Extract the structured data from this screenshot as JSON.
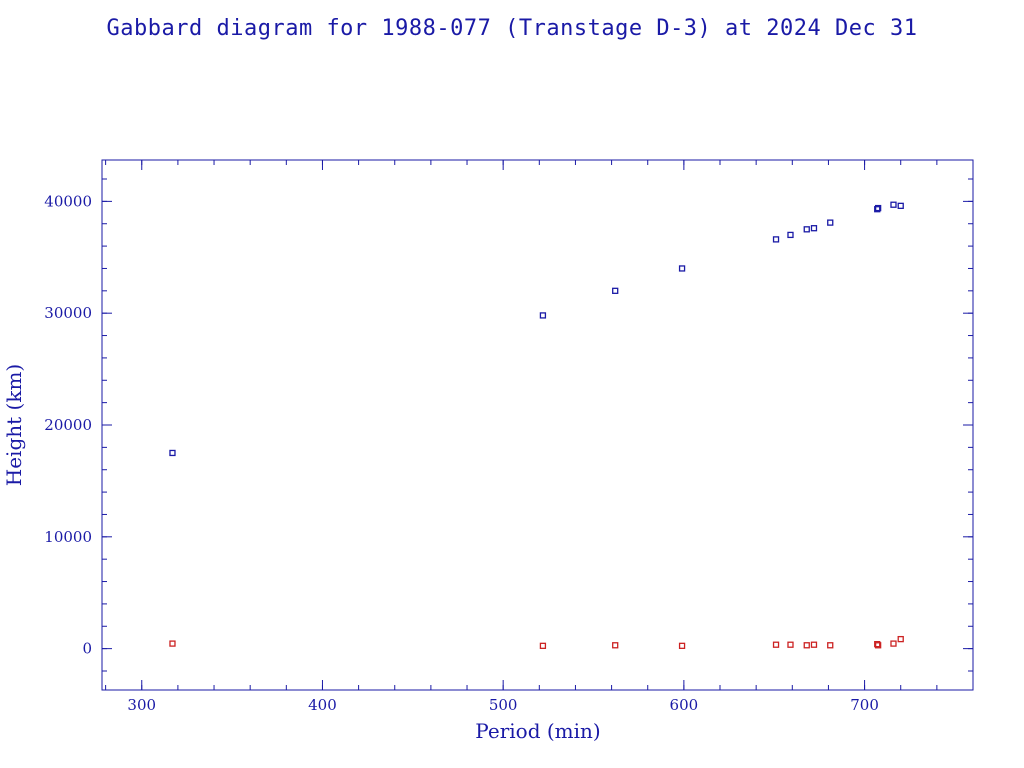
{
  "title": "Gabbard diagram for 1988-077 (Transtage D-3) at 2024 Dec 31",
  "colors": {
    "frame": "#1a1aa6",
    "apogee": "#1a1aa6",
    "perigee": "#cc2222",
    "background": "#ffffff"
  },
  "chart_data": {
    "type": "scatter",
    "title": "Gabbard diagram for 1988-077 (Transtage D-3) at 2024 Dec 31",
    "xlabel": "Period (min)",
    "ylabel": "Height (km)",
    "xlim": [
      278,
      760
    ],
    "ylim": [
      -3700,
      43700
    ],
    "xticks": [
      300,
      400,
      500,
      600,
      700
    ],
    "yticks": [
      0,
      10000,
      20000,
      30000,
      40000
    ],
    "x_minor_step": 20,
    "y_minor_step": 2000,
    "grid": false,
    "series": [
      {
        "color": "#1a1aa6",
        "marker": "square",
        "points": [
          [
            317,
            17500
          ],
          [
            522,
            29800
          ],
          [
            562,
            32000
          ],
          [
            599,
            34000
          ],
          [
            651,
            36600
          ],
          [
            659,
            37000
          ],
          [
            668,
            37500
          ],
          [
            672,
            37600
          ],
          [
            681,
            38100
          ],
          [
            707,
            39300
          ],
          [
            707.5,
            39400
          ],
          [
            716,
            39700
          ],
          [
            720,
            39600
          ]
        ]
      },
      {
        "color": "#cc2222",
        "marker": "square",
        "points": [
          [
            317,
            450
          ],
          [
            522,
            250
          ],
          [
            562,
            300
          ],
          [
            599,
            250
          ],
          [
            651,
            350
          ],
          [
            659,
            350
          ],
          [
            668,
            300
          ],
          [
            672,
            350
          ],
          [
            681,
            300
          ],
          [
            707,
            400
          ],
          [
            707.5,
            300
          ],
          [
            716,
            450
          ],
          [
            720,
            850
          ]
        ]
      }
    ]
  }
}
